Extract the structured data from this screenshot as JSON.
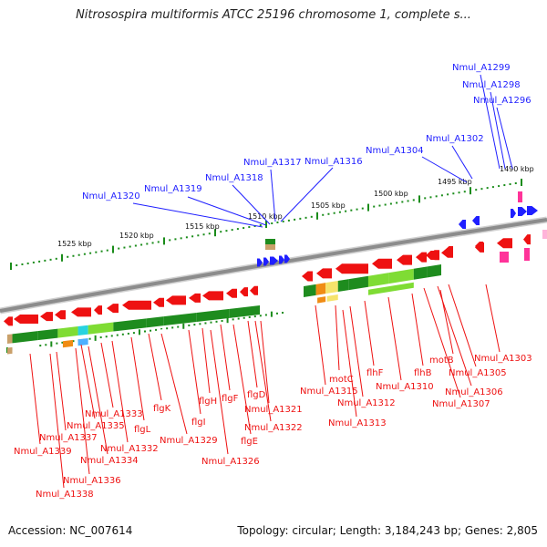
{
  "title": "Nitrosospira multiformis ATCC 25196 chromosome 1, complete s...",
  "footer": {
    "accession": "Accession: NC_007614",
    "summary": "Topology: circular; Length: 3,184,243 bp; Genes: 2,805"
  },
  "colors": {
    "forward_gene": "#1f1fff",
    "reverse_gene": "#ee1111",
    "pink_gene": "#ff3399",
    "backbone": "#8c8c8c",
    "scale_ticks": "#1a8c1a",
    "cog_dark_green": "#1e8c1e",
    "cog_light_green": "#7fdc34",
    "cog_orange": "#f08c14",
    "cog_cyan": "#27d3e0"
  },
  "scale_labels": [
    "1525 kbp",
    "1520 kbp",
    "1515 kbp",
    "1510 kbp",
    "1505 kbp",
    "1500 kbp",
    "1495 kbp",
    "1490 kbp"
  ],
  "forward_labels": [
    "Nmul_A1299",
    "Nmul_A1298",
    "Nmul_A1296",
    "Nmul_A1302",
    "Nmul_A1304",
    "Nmul_A1316",
    "Nmul_A1317",
    "Nmul_A1318",
    "Nmul_A1319",
    "Nmul_A1320"
  ],
  "reverse_labels": [
    "Nmul_A1303",
    "motB",
    "Nmul_A1305",
    "Nmul_A1306",
    "Nmul_A1307",
    "flhB",
    "Nmul_A1310",
    "flhF",
    "motC",
    "Nmul_A1315",
    "Nmul_A1312",
    "Nmul_A1313",
    "flgD",
    "Nmul_A1321",
    "Nmul_A1322",
    "flgF",
    "flgE",
    "flgH",
    "flgI",
    "Nmul_A1326",
    "flgK",
    "flgL",
    "Nmul_A1329",
    "Nmul_A1333",
    "Nmul_A1335",
    "Nmul_A1332",
    "Nmul_A1337",
    "Nmul_A1334",
    "Nmul_A1339",
    "Nmul_A1336",
    "Nmul_A1338"
  ]
}
